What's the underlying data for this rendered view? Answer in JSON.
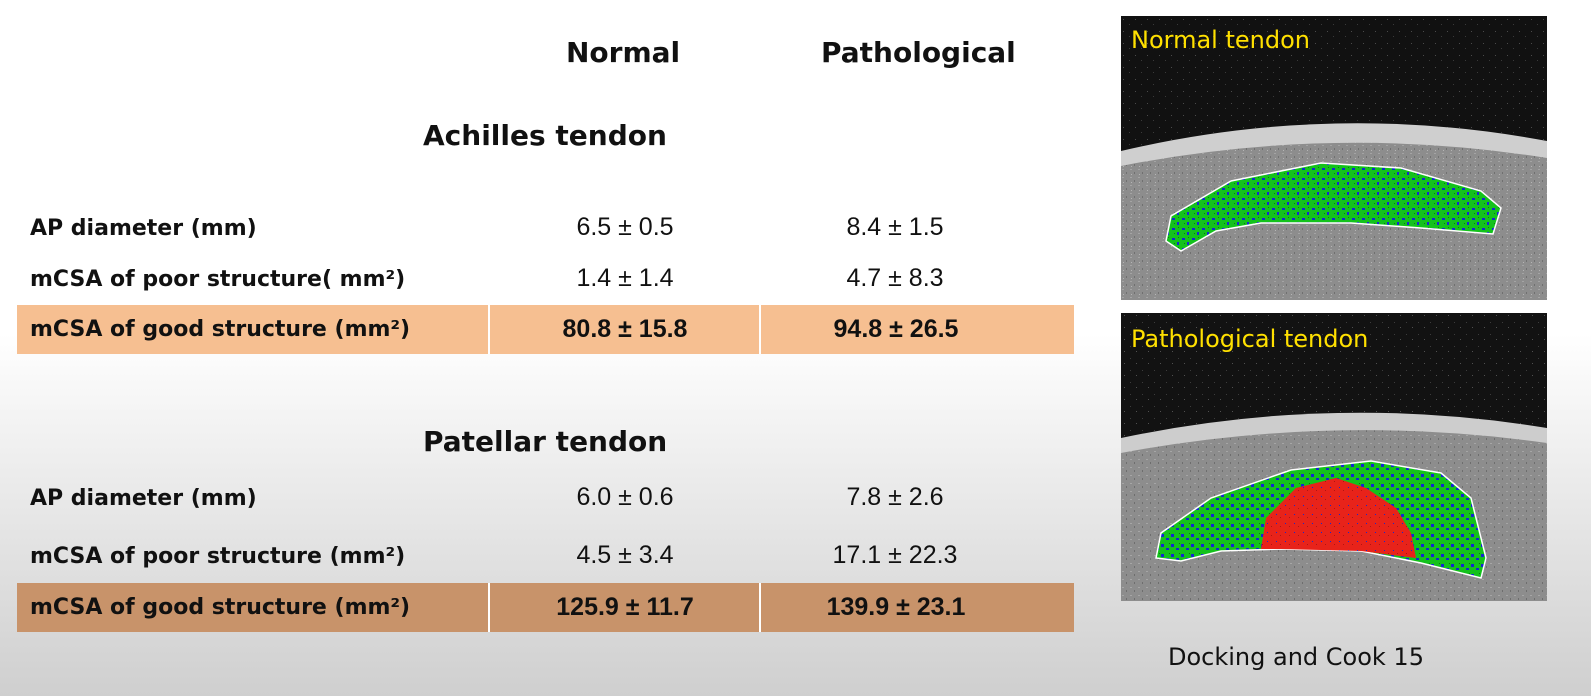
{
  "columns": {
    "normal": "Normal",
    "pathological": "Pathological"
  },
  "achilles": {
    "title": "Achilles tendon",
    "rows": [
      {
        "label": "AP diameter (mm)",
        "normal": "6.5 ± 0.5",
        "pathological": "8.4 ± 1.5"
      },
      {
        "label": "mCSA of poor structure( mm²)",
        "normal": "1.4 ± 1.4",
        "pathological": "4.7 ± 8.3"
      },
      {
        "label": "mCSA of good structure (mm²)",
        "normal": "80.8 ± 15.8",
        "pathological": "94.8 ± 26.5"
      }
    ],
    "highlight_color": "#f6bf91"
  },
  "patellar": {
    "title": "Patellar tendon",
    "rows": [
      {
        "label": "AP diameter (mm)",
        "normal": "6.0 ± 0.6",
        "pathological": "7.8 ± 2.6"
      },
      {
        "label": "mCSA of poor structure (mm²)",
        "normal": "4.5 ± 3.4",
        "pathological": "17.1 ± 22.3"
      },
      {
        "label": "mCSA of good structure (mm²)",
        "normal": "125.9 ± 11.7",
        "pathological": "139.9 ± 23.1"
      }
    ],
    "highlight_color": "#c8936a"
  },
  "images": {
    "normal_label": "Normal tendon",
    "pathological_label": "Pathological tendon",
    "label_color": "#ffe000",
    "tissue_colors": {
      "good": "#14c21c",
      "intermediate": "#1428d0",
      "poor": "#e8231a"
    }
  },
  "citation": "Docking and Cook 15"
}
